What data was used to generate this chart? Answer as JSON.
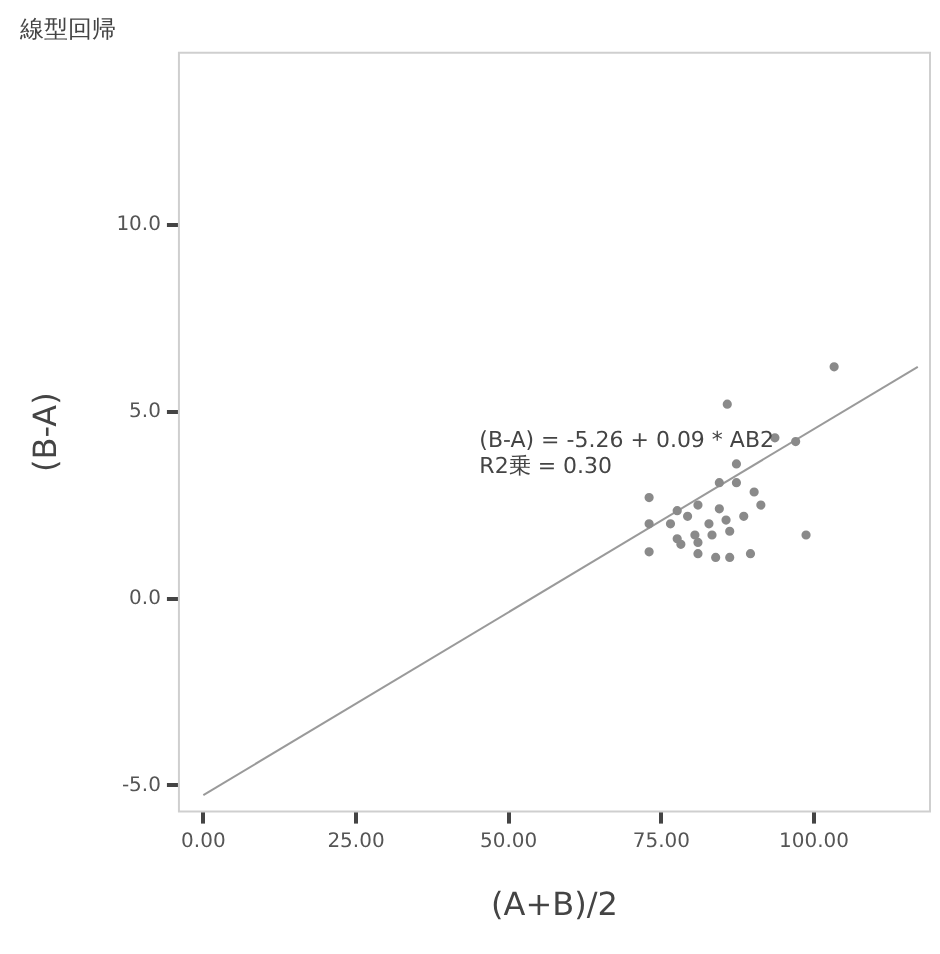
{
  "chart_data": {
    "type": "scatter",
    "title": "線型回帰",
    "xlabel": "(A+B)/2",
    "ylabel": "(B-A)",
    "xlim": [
      -4,
      119
    ],
    "ylim": [
      -5.7,
      14.6
    ],
    "xticks": [
      {
        "value": 0,
        "label": "0.00"
      },
      {
        "value": 25,
        "label": "25.00"
      },
      {
        "value": 50,
        "label": "50.00"
      },
      {
        "value": 75,
        "label": "75.00"
      },
      {
        "value": 100,
        "label": "100.00"
      }
    ],
    "yticks": [
      {
        "value": -5,
        "label": "-5.0"
      },
      {
        "value": 0,
        "label": "0.0"
      },
      {
        "value": 5,
        "label": "5.0"
      },
      {
        "value": 10,
        "label": "10.0"
      }
    ],
    "grid": false,
    "legend": false,
    "marker": "circle",
    "annotations": [
      "(B-A) = -5.26 + 0.09 * AB2",
      "R2乗 = 0.30"
    ],
    "series": [
      {
        "color": "#8a8a8a",
        "x": [
          103.3,
          85.8,
          93.6,
          97.0,
          87.3,
          84.5,
          87.3,
          90.2,
          91.3,
          73.0,
          81.0,
          77.6,
          84.5,
          73.0,
          76.5,
          79.3,
          82.8,
          85.6,
          88.5,
          77.6,
          80.5,
          83.3,
          86.2,
          73.0,
          78.2,
          81.0,
          83.9,
          86.2,
          89.6,
          98.7,
          81.0
        ],
        "values": [
          6.2,
          5.2,
          4.3,
          4.2,
          3.6,
          3.1,
          3.1,
          2.85,
          2.5,
          2.7,
          2.5,
          2.35,
          2.4,
          2.0,
          2.0,
          2.2,
          2.0,
          2.1,
          2.2,
          1.6,
          1.7,
          1.7,
          1.8,
          1.25,
          1.45,
          1.2,
          1.1,
          1.1,
          1.2,
          1.7,
          1.5
        ]
      },
      {
        "type": "line",
        "color": "#9a9a9a",
        "line_style": "solid",
        "marker": "none",
        "x": [
          0,
          117
        ],
        "values": [
          -5.26,
          6.2
        ]
      }
    ]
  }
}
